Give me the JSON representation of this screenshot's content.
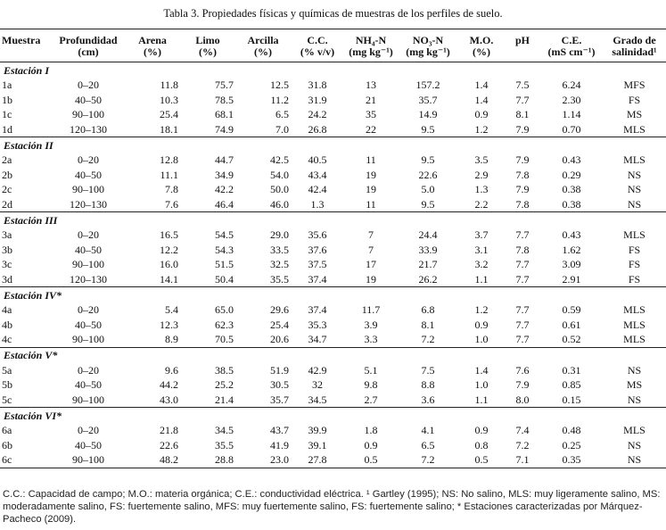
{
  "caption": "Tabla 3. Propiedades físicas y químicas de muestras de los perfiles de suelo.",
  "headers": [
    {
      "l1": "Muestra",
      "l2": ""
    },
    {
      "l1": "Profundidad",
      "l2": "(cm)"
    },
    {
      "l1": "Arena",
      "l2": "(%)"
    },
    {
      "l1": "Limo",
      "l2": "(%)"
    },
    {
      "l1": "Arcilla",
      "l2": "(%)"
    },
    {
      "l1": "C.C.",
      "l2": "(% v/v)"
    },
    {
      "l1": "NH₄-N",
      "l2": "(mg kg⁻¹)"
    },
    {
      "l1": "NO₃-N",
      "l2": "(mg kg⁻¹)"
    },
    {
      "l1": "M.O.",
      "l2": "(%)"
    },
    {
      "l1": "pH",
      "l2": ""
    },
    {
      "l1": "C.E.",
      "l2": "(mS cm⁻¹)"
    },
    {
      "l1": "Grado de",
      "l2": "salinidad¹"
    }
  ],
  "sections": [
    {
      "title": "Estación I",
      "rows": [
        [
          "1a",
          "0–20",
          "11.8",
          "75.7",
          "12.5",
          "31.8",
          "13",
          "157.2",
          "1.4",
          "7.5",
          "6.24",
          "MFS"
        ],
        [
          "1b",
          "40–50",
          "10.3",
          "78.5",
          "11.2",
          "31.9",
          "21",
          "35.7",
          "1.4",
          "7.7",
          "2.30",
          "FS"
        ],
        [
          "1c",
          "90–100",
          "25.4",
          "68.1",
          "6.5",
          "24.2",
          "35",
          "14.9",
          "0.9",
          "8.1",
          "1.14",
          "MS"
        ],
        [
          "1d",
          "120–130",
          "18.1",
          "74.9",
          "7.0",
          "26.8",
          "22",
          "9.5",
          "1.2",
          "7.9",
          "0.70",
          "MLS"
        ]
      ]
    },
    {
      "title": "Estación II",
      "rows": [
        [
          "2a",
          "0–20",
          "12.8",
          "44.7",
          "42.5",
          "40.5",
          "11",
          "9.5",
          "3.5",
          "7.9",
          "0.43",
          "MLS"
        ],
        [
          "2b",
          "40–50",
          "11.1",
          "34.9",
          "54.0",
          "43.4",
          "19",
          "22.6",
          "2.9",
          "7.8",
          "0.29",
          "NS"
        ],
        [
          "2c",
          "90–100",
          "7.8",
          "42.2",
          "50.0",
          "42.4",
          "19",
          "5.0",
          "1.3",
          "7.9",
          "0.38",
          "NS"
        ],
        [
          "2d",
          "120–130",
          "7.6",
          "46.4",
          "46.0",
          "1.3",
          "11",
          "9.5",
          "2.2",
          "7.8",
          "0.38",
          "NS"
        ]
      ]
    },
    {
      "title": "Estación III",
      "rows": [
        [
          "3a",
          "0–20",
          "16.5",
          "54.5",
          "29.0",
          "35.6",
          "7",
          "24.4",
          "3.7",
          "7.7",
          "0.43",
          "MLS"
        ],
        [
          "3b",
          "40–50",
          "12.2",
          "54.3",
          "33.5",
          "37.6",
          "7",
          "33.9",
          "3.1",
          "7.8",
          "1.62",
          "FS"
        ],
        [
          "3c",
          "90–100",
          "16.0",
          "51.5",
          "32.5",
          "37.5",
          "17",
          "21.7",
          "3.2",
          "7.7",
          "3.09",
          "FS"
        ],
        [
          "3d",
          "120–130",
          "14.1",
          "50.4",
          "35.5",
          "37.4",
          "19",
          "26.2",
          "1.1",
          "7.7",
          "2.91",
          "FS"
        ]
      ]
    },
    {
      "title": "Estación IV*",
      "rows": [
        [
          "4a",
          "0–20",
          "5.4",
          "65.0",
          "29.6",
          "37.4",
          "11.7",
          "6.8",
          "1.2",
          "7.7",
          "0.59",
          "MLS"
        ],
        [
          "4b",
          "40–50",
          "12.3",
          "62.3",
          "25.4",
          "35.3",
          "3.9",
          "8.1",
          "0.9",
          "7.7",
          "0.61",
          "MLS"
        ],
        [
          "4c",
          "90–100",
          "8.9",
          "70.5",
          "20.6",
          "34.7",
          "3.3",
          "7.2",
          "1.0",
          "7.7",
          "0.52",
          "MLS"
        ]
      ]
    },
    {
      "title": "Estación V*",
      "rows": [
        [
          "5a",
          "0–20",
          "9.6",
          "38.5",
          "51.9",
          "42.9",
          "5.1",
          "7.5",
          "1.4",
          "7.6",
          "0.31",
          "NS"
        ],
        [
          "5b",
          "40–50",
          "44.2",
          "25.2",
          "30.5",
          "32",
          "9.8",
          "8.8",
          "1.0",
          "7.9",
          "0.85",
          "MS"
        ],
        [
          "5c",
          "90–100",
          "43.0",
          "21.4",
          "35.7",
          "34.5",
          "2.7",
          "3.6",
          "1.1",
          "8.0",
          "0.15",
          "NS"
        ]
      ]
    },
    {
      "title": "Estación VI*",
      "rows": [
        [
          "6a",
          "0–20",
          "21.8",
          "34.5",
          "43.7",
          "39.9",
          "1.8",
          "4.1",
          "0.9",
          "7.4",
          "0.48",
          "MLS"
        ],
        [
          "6b",
          "40–50",
          "22.6",
          "35.5",
          "41.9",
          "39.1",
          "0.9",
          "6.5",
          "0.8",
          "7.2",
          "0.25",
          "NS"
        ],
        [
          "6c",
          "90–100",
          "48.2",
          "28.8",
          "23.0",
          "27.8",
          "0.5",
          "7.2",
          "0.5",
          "7.1",
          "0.35",
          "NS"
        ]
      ]
    }
  ],
  "footnote": "C.C.: Capacidad de campo; M.O.: materia orgánica; C.E.: conductividad eléctrica. ¹ Gartley (1995); NS: No salino, MLS: muy ligeramente salino, MS: moderadamente salino, FS: fuertemente salino, MFS: muy fuertemente salino, FS: fuertemente salino; * Estaciones caracterizadas por Márquez-Pacheco (2009)."
}
